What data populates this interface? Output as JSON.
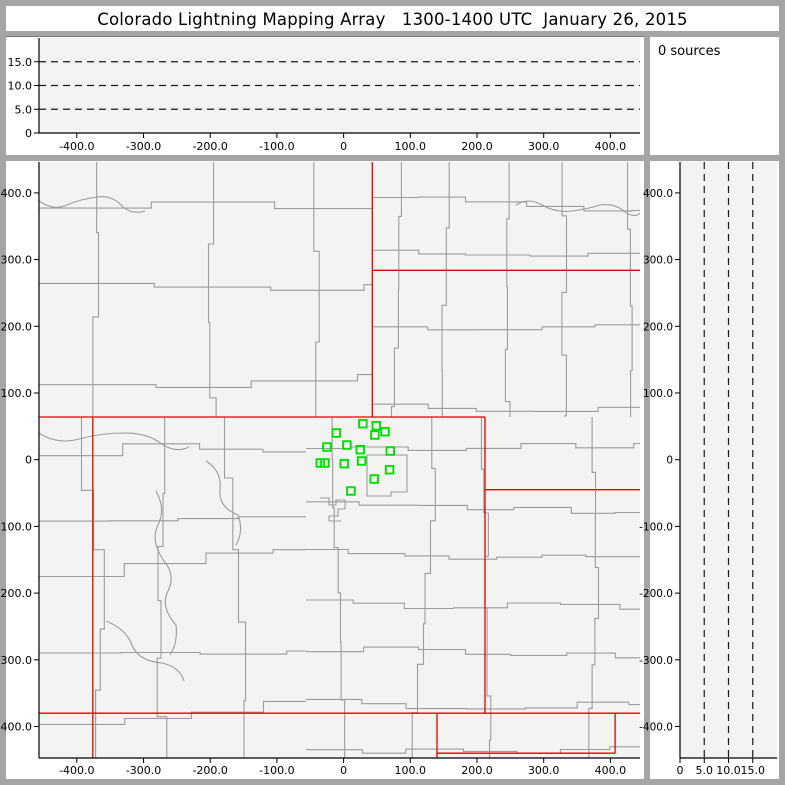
{
  "title": "Colorado Lightning Mapping Array   1300-1400 UTC  January 26, 2015",
  "sources_box": {
    "text": "0 sources"
  },
  "colors": {
    "frame": "#a5a5a5",
    "panel_margin": "#ffffff",
    "plot_bg": "#f3f3f2",
    "county_line": "#9c9c9c",
    "state_line": "#e80000",
    "station": "#00e000",
    "dashed_line": "#1a1a1a",
    "axis_ink": "#000000"
  },
  "panels": {
    "alt_ew": {
      "description": "altitude (km) vs east-west distance (km), 0-20 km",
      "ticks": [
        {
          "km": 0,
          "label": "0"
        },
        {
          "km": 5,
          "label": "5.0"
        },
        {
          "km": 10,
          "label": "10.0"
        },
        {
          "km": 15,
          "label": "15.0"
        }
      ],
      "dashed_km": [
        5,
        10,
        15
      ],
      "lim_km": [
        0,
        20
      ]
    },
    "map": {
      "description": "plan view map, km east-west vs km north-south",
      "xticks": [
        {
          "km": -400,
          "label": "-400.0"
        },
        {
          "km": -300,
          "label": "-300.0"
        },
        {
          "km": -200,
          "label": "-200.0"
        },
        {
          "km": -100,
          "label": "-100.0"
        },
        {
          "km": 0,
          "label": "0"
        },
        {
          "km": 100,
          "label": "100.0"
        },
        {
          "km": 200,
          "label": "200.0"
        },
        {
          "km": 300,
          "label": "300.0"
        },
        {
          "km": 400,
          "label": "400.0"
        }
      ],
      "yticks": [
        {
          "km": 400,
          "label": "400.0"
        },
        {
          "km": 300,
          "label": "300.0"
        },
        {
          "km": 200,
          "label": "200.0"
        },
        {
          "km": 100,
          "label": "100.0"
        },
        {
          "km": 0,
          "label": "0"
        },
        {
          "km": -100,
          "label": "-100.0"
        },
        {
          "km": -200,
          "label": "-200.0"
        },
        {
          "km": -300,
          "label": "-300.0"
        },
        {
          "km": -400,
          "label": "-400.0"
        }
      ],
      "stations_km": [
        [
          29,
          54
        ],
        [
          49,
          51
        ],
        [
          62,
          42
        ],
        [
          47,
          37
        ],
        [
          -11,
          40
        ],
        [
          -25,
          19
        ],
        [
          5,
          22
        ],
        [
          25,
          15
        ],
        [
          70,
          13
        ],
        [
          -35,
          -5
        ],
        [
          -28,
          -5
        ],
        [
          1,
          -6
        ],
        [
          27,
          -2
        ],
        [
          69,
          -15
        ],
        [
          46,
          -29
        ],
        [
          11,
          -47
        ]
      ]
    },
    "alt_ns": {
      "description": "north-south distance (km) vs altitude (km), 0-20 km",
      "ticks": [
        {
          "km": 0,
          "label": "0"
        },
        {
          "km": 5,
          "label": "5.0"
        },
        {
          "km": 10,
          "label": "10.0"
        },
        {
          "km": 15,
          "label": "15.0"
        }
      ],
      "dashed_km": [
        5,
        10,
        15
      ],
      "lim_km": [
        0,
        20
      ]
    }
  },
  "chart_data": [
    {
      "type": "scatter",
      "panel": "altitude-vs-east-west",
      "title": "",
      "xlim": [
        -460,
        445
      ],
      "ylim": [
        0,
        20
      ],
      "xticks": [
        -400,
        -300,
        -200,
        -100,
        0,
        100,
        200,
        300,
        400
      ],
      "yticks": [
        0,
        5,
        10,
        15
      ],
      "gridlines_y": [
        5,
        10,
        15
      ],
      "grid_style": "black dashed",
      "series": [],
      "note": "0 sources plotted (empty panel)"
    },
    {
      "type": "scatter",
      "panel": "plan-view-map",
      "title": "Colorado Lightning Mapping Array   1300-1400 UTC  January 26, 2015",
      "xlim": [
        -460,
        445
      ],
      "ylim": [
        -448,
        447
      ],
      "xticks": [
        -400,
        -300,
        -200,
        -100,
        0,
        100,
        200,
        300,
        400
      ],
      "yticks": [
        400,
        300,
        200,
        100,
        0,
        -100,
        -200,
        -300,
        -400
      ],
      "series": [
        {
          "name": "LMA stations",
          "marker": "open-square",
          "color": "#00e000",
          "points": [
            [
              29,
              54
            ],
            [
              49,
              51
            ],
            [
              62,
              42
            ],
            [
              47,
              37
            ],
            [
              -11,
              40
            ],
            [
              -25,
              19
            ],
            [
              5,
              22
            ],
            [
              25,
              15
            ],
            [
              70,
              13
            ],
            [
              -35,
              -5
            ],
            [
              -28,
              -5
            ],
            [
              1,
              -6
            ],
            [
              27,
              -2
            ],
            [
              69,
              -15
            ],
            [
              46,
              -29
            ],
            [
              11,
              -47
            ]
          ]
        },
        {
          "name": "lightning sources",
          "points": [],
          "note": "0 sources"
        }
      ],
      "annotations": [
        "gray county boundaries",
        "red state boundaries (CO, WY, NE, KS, UT, NM, OK/TX panhandles)"
      ]
    },
    {
      "type": "scatter",
      "panel": "altitude-vs-north-south",
      "title": "",
      "xlim": [
        0,
        20
      ],
      "ylim": [
        -448,
        447
      ],
      "xticks": [
        0,
        5,
        10,
        15
      ],
      "yticks": [
        400,
        300,
        200,
        100,
        0,
        -100,
        -200,
        -300,
        -400
      ],
      "gridlines_x": [
        5,
        10,
        15
      ],
      "grid_style": "black dashed",
      "series": [],
      "note": "0 sources plotted (empty panel)"
    }
  ]
}
